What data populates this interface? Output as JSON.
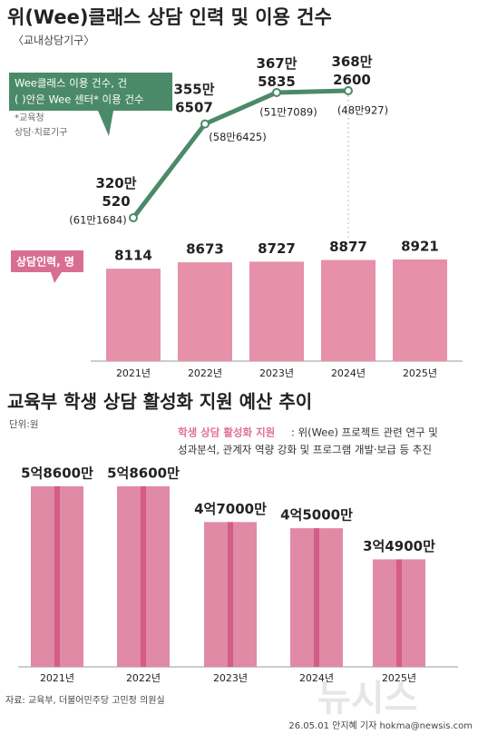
{
  "title": "위(Wee)클래스 상담 인력 및 이용 건수",
  "subtitle": "〈교내상담기구〉",
  "footnote": [
    "*교육청",
    "상담·치료기구"
  ],
  "chart_data": [
    {
      "type": "line",
      "series": [
        {
          "name": "Wee클래스 이용 건수, 건",
          "color": "#4b8a68",
          "values": [
            3200520,
            3556507,
            3675835,
            3682600
          ],
          "value_labels": [
            "320만 520",
            "355만 6507",
            "367만 5835",
            "368만 2600"
          ]
        },
        {
          "name": "( )안은 Wee 센터* 이용 건수",
          "color": "#555555",
          "values": [
            611684,
            586425,
            517089,
            480927
          ],
          "value_labels": [
            "(61만1684)",
            "(58만6425)",
            "(51만7089)",
            "(48만927)"
          ]
        }
      ]
    },
    {
      "type": "bar",
      "label": "상담인력, 명",
      "color": "#e690aa",
      "categories": [
        "2021년",
        "2022년",
        "2023년",
        "2024년",
        "2025년"
      ],
      "values": [
        8114,
        8673,
        8727,
        8877,
        8921
      ]
    },
    {
      "type": "bar",
      "title": "교육부 학생 상담 활성화 지원 예산 추이",
      "unit": "단위:원",
      "note_key": "학생 상담 활성화 지원",
      "note_lines": [
        ": 위(Wee) 프로젝트 관련 연구 및",
        "성과분석, 관계자 역량 강화 및 프로그램 개발·보급 등 추진"
      ],
      "color": "#e08aa6",
      "stripe_color": "#d45c86",
      "categories": [
        "2021년",
        "2022년",
        "2023년",
        "2024년",
        "2025년"
      ],
      "values": [
        586000000,
        586000000,
        470000000,
        450000000,
        349000000
      ],
      "value_labels": [
        "5억8600만",
        "5억8600만",
        "4억7000만",
        "4억5000만",
        "3억4900만"
      ]
    }
  ],
  "source": "자료: 교육부, 더불어민주당 고민정 의원실",
  "credit": "26.05.01 안지혜 기자 hokma@newsis.com",
  "watermark": "뉴시스"
}
